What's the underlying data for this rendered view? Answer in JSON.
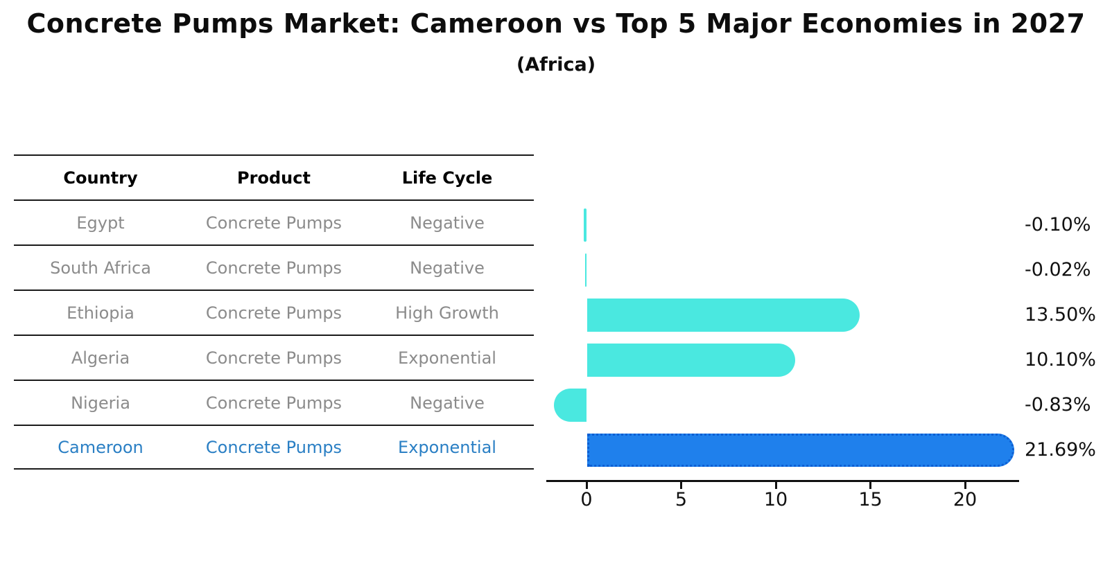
{
  "title": "Concrete Pumps Market: Cameroon vs Top 5 Major Economies in 2027",
  "subtitle": "(Africa)",
  "table": {
    "columns": [
      "Country",
      "Product",
      "Life Cycle"
    ],
    "rows": [
      {
        "country": "Egypt",
        "product": "Concrete Pumps",
        "life_cycle": "Negative"
      },
      {
        "country": "South Africa",
        "product": "Concrete Pumps",
        "life_cycle": "Negative"
      },
      {
        "country": "Ethiopia",
        "product": "Concrete Pumps",
        "life_cycle": "High Growth"
      },
      {
        "country": "Algeria",
        "product": "Concrete Pumps",
        "life_cycle": "Exponential"
      },
      {
        "country": "Nigeria",
        "product": "Concrete Pumps",
        "life_cycle": "Negative"
      },
      {
        "country": "Cameroon",
        "product": "Concrete Pumps",
        "life_cycle": "Exponential"
      }
    ],
    "highlight_row": "Cameroon"
  },
  "chart_data": {
    "type": "bar",
    "orientation": "horizontal",
    "title": "Concrete Pumps Market: Cameroon vs Top 5 Major Economies in 2027",
    "categories": [
      "Egypt",
      "South Africa",
      "Ethiopia",
      "Algeria",
      "Nigeria",
      "Cameroon"
    ],
    "values": [
      -0.1,
      -0.02,
      13.5,
      10.1,
      -0.83,
      21.69
    ],
    "value_labels": [
      "-0.10%",
      "-0.02%",
      "13.50%",
      "10.10%",
      "-0.83%",
      "21.69%"
    ],
    "x_ticks": [
      0,
      5,
      10,
      15,
      20
    ],
    "xlim": [
      -2.5,
      22.8
    ],
    "highlight_index": 5,
    "grid": false,
    "legend": false,
    "colors": {
      "bar_default": "#4ae8e0",
      "bar_highlight": "#1f80ec",
      "bar_highlight_border": "#0d5ed2",
      "row_text": "#8b8b8b",
      "highlight_text": "#2a7fc4",
      "axis": "#111111"
    }
  }
}
